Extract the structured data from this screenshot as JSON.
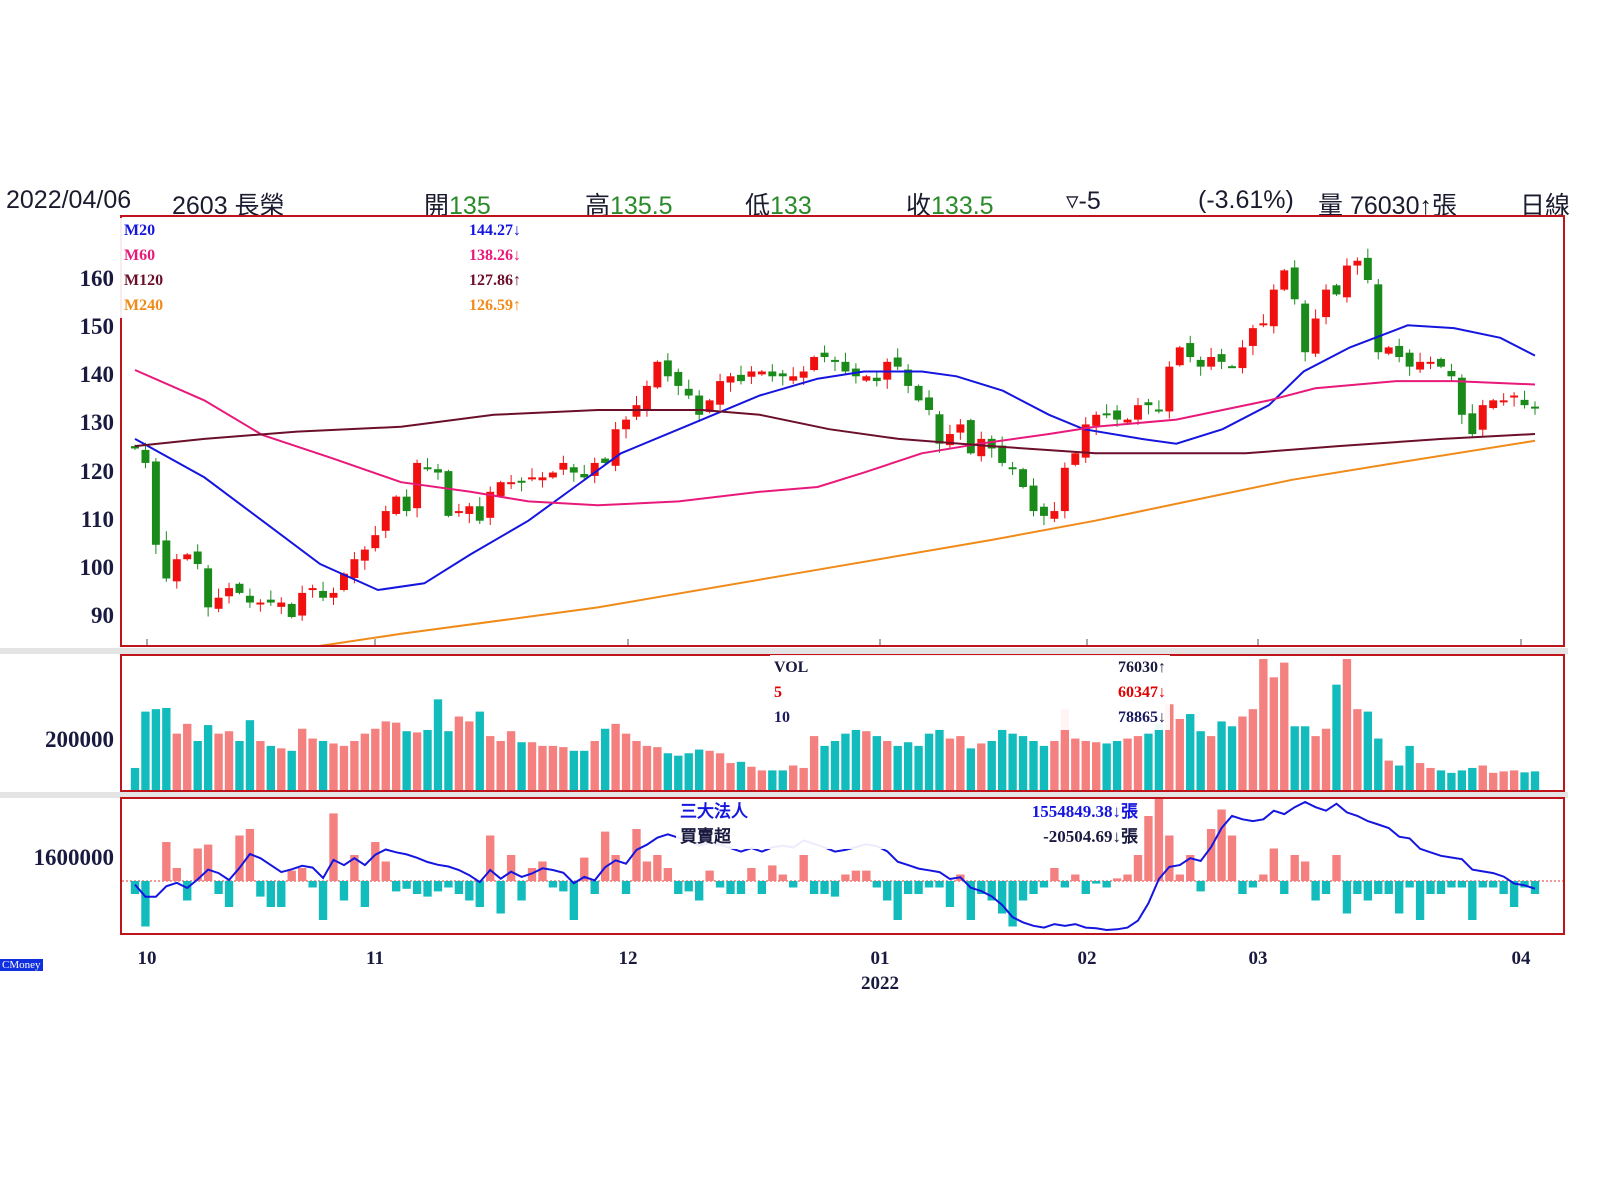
{
  "header": {
    "date": "2022/04/06",
    "stock": "2603 長榮",
    "open_label": "開",
    "open": "135",
    "high_label": "高",
    "high": "135.5",
    "low_label": "低",
    "low": "133",
    "close_label": "收",
    "close": "133.5",
    "change": "▿-5",
    "change_pct": "(-3.61%)",
    "volume_label": "量",
    "volume": "76030↑張",
    "period": "日線"
  },
  "ma_legend": [
    {
      "name": "M20",
      "value": "144.27↓",
      "color": "#1515e0"
    },
    {
      "name": "M60",
      "value": "138.26↓",
      "color": "#e8197a"
    },
    {
      "name": "M120",
      "value": "127.86↑",
      "color": "#6b0f2a"
    },
    {
      "name": "M240",
      "value": "126.59↑",
      "color": "#f08a18"
    }
  ],
  "vol_legend": [
    {
      "name": "VOL",
      "value": "76030↑",
      "color": "#1a1a40"
    },
    {
      "name": "5",
      "value": "60347↓",
      "color": "#e00000"
    },
    {
      "name": "10",
      "value": "78865↓",
      "color": "#1a1a60"
    }
  ],
  "inst_legend": [
    {
      "name": "三大法人",
      "value": "1554849.38↓張",
      "color": "#1515e0"
    },
    {
      "name": "買賣超",
      "value": "-20504.69↓張",
      "color": "#1a1a40"
    }
  ],
  "brand": "CMoney",
  "chart_data": {
    "type": "candlestick",
    "price_ticks": [
      "160",
      "150",
      "140",
      "130",
      "120",
      "110",
      "100",
      "90"
    ],
    "price_range": [
      84,
      167
    ],
    "vol_tick": "200000",
    "inst_tick": "1600000",
    "x_ticks": [
      "10",
      "11",
      "12",
      "01",
      "02",
      "03",
      "04"
    ],
    "x_year": "2022",
    "close": [
      125,
      122,
      105,
      98,
      102,
      103,
      101,
      92,
      94,
      96,
      95,
      93,
      93,
      93,
      93,
      90,
      95,
      96,
      94,
      95,
      99,
      102,
      104,
      107,
      112,
      115,
      112,
      122,
      121,
      120,
      111,
      112,
      113,
      110,
      116,
      118,
      118,
      118,
      119,
      119,
      120,
      122,
      120,
      119,
      122,
      122,
      129,
      131,
      134,
      138,
      143,
      140,
      138,
      136,
      132,
      135,
      139,
      140,
      139,
      141,
      141,
      140,
      140,
      140,
      141,
      144,
      144,
      143,
      141,
      140,
      140,
      139,
      143,
      142,
      138,
      135,
      133,
      126,
      128,
      130,
      124,
      127,
      125,
      122,
      121,
      117,
      112,
      111,
      112,
      121,
      124,
      130,
      132,
      132,
      131,
      131,
      134,
      134,
      133,
      142,
      146,
      144,
      142,
      144,
      143,
      142,
      146,
      150,
      151,
      158,
      162,
      156,
      145,
      152,
      158,
      157,
      163,
      164,
      160,
      145,
      146,
      144,
      142,
      143,
      143,
      142,
      140,
      132,
      128,
      134,
      135,
      135,
      136,
      134,
      133.5
    ],
    "volume_thousands": [
      90,
      320,
      330,
      335,
      230,
      270,
      200,
      265,
      230,
      240,
      200,
      285,
      200,
      180,
      170,
      160,
      250,
      210,
      200,
      190,
      180,
      200,
      230,
      250,
      280,
      275,
      240,
      235,
      245,
      370,
      240,
      300,
      280,
      320,
      220,
      200,
      240,
      195,
      195,
      180,
      180,
      175,
      160,
      160,
      200,
      250,
      270,
      230,
      200,
      180,
      175,
      150,
      140,
      150,
      165,
      160,
      150,
      110,
      115,
      95,
      80,
      80,
      80,
      100,
      90,
      220,
      180,
      200,
      230,
      250,
      240,
      220,
      200,
      180,
      195,
      180,
      230,
      250,
      210,
      220,
      170,
      190,
      200,
      250,
      230,
      220,
      200,
      180,
      200,
      330,
      210,
      200,
      195,
      190,
      200,
      210,
      220,
      230,
      270,
      350,
      290,
      310,
      240,
      220,
      280,
      260,
      300,
      330,
      540,
      460,
      520,
      260,
      260,
      220,
      250,
      430,
      540,
      330,
      320,
      210,
      120,
      100,
      180,
      110,
      90,
      80,
      70,
      80,
      90,
      100,
      70,
      76,
      80,
      72,
      76
    ],
    "net_buy_thousands": [
      -10,
      -35,
      0,
      30,
      10,
      -15,
      25,
      28,
      -10,
      -20,
      35,
      40,
      -12,
      -20,
      -20,
      8,
      10,
      -5,
      -30,
      52,
      -15,
      20,
      -20,
      30,
      15,
      -8,
      -6,
      -10,
      -12,
      -8,
      -5,
      -10,
      -15,
      -20,
      35,
      -25,
      20,
      -15,
      10,
      15,
      -5,
      -8,
      -30,
      18,
      -10,
      38,
      20,
      -10,
      40,
      15,
      20,
      10,
      -10,
      -8,
      -15,
      8,
      -5,
      -10,
      -10,
      10,
      -10,
      12,
      5,
      -5,
      20,
      -10,
      -10,
      -12,
      5,
      8,
      8,
      -5,
      -15,
      -30,
      -10,
      -10,
      -5,
      -5,
      -20,
      5,
      -30,
      -10,
      -15,
      -25,
      -35,
      -15,
      -10,
      -5,
      10,
      -5,
      5,
      -10,
      -2,
      -5,
      2,
      5,
      20,
      50,
      70,
      35,
      5,
      20,
      -8,
      40,
      55,
      35,
      -10,
      -5,
      5,
      25,
      -10,
      20,
      15,
      -15,
      -10,
      20,
      -25,
      -10,
      -15,
      -10,
      -10,
      -25,
      -5,
      -30,
      -10,
      -10,
      -5,
      -5,
      -30,
      -5,
      -5,
      -10,
      -20,
      -5,
      -10,
      -25,
      -15,
      -10,
      -20
    ],
    "ma": {
      "M20": [
        [
          0,
          127
        ],
        [
          6,
          119
        ],
        [
          11,
          110
        ],
        [
          16,
          101
        ],
        [
          21,
          95.6
        ],
        [
          25,
          97
        ],
        [
          29,
          103
        ],
        [
          34,
          110
        ],
        [
          38,
          117
        ],
        [
          42,
          124
        ],
        [
          48,
          130
        ],
        [
          54,
          136
        ],
        [
          59,
          139.5
        ],
        [
          63,
          141
        ],
        [
          68,
          141
        ],
        [
          71,
          140
        ],
        [
          75,
          137
        ],
        [
          79,
          132
        ],
        [
          82,
          129
        ],
        [
          87,
          127
        ],
        [
          90,
          126
        ],
        [
          94,
          129
        ],
        [
          98,
          134
        ],
        [
          101,
          141
        ],
        [
          105,
          146
        ],
        [
          110,
          150.6
        ],
        [
          114,
          150
        ],
        [
          118,
          148
        ],
        [
          121,
          144.3
        ]
      ],
      "M60": [
        [
          0,
          141.3
        ],
        [
          6,
          135
        ],
        [
          11,
          127.8
        ],
        [
          17,
          123
        ],
        [
          23,
          118
        ],
        [
          29,
          116
        ],
        [
          34,
          114
        ],
        [
          40,
          113.2
        ],
        [
          47,
          114
        ],
        [
          54,
          116
        ],
        [
          59,
          117
        ],
        [
          63,
          120
        ],
        [
          68,
          124
        ],
        [
          73,
          126
        ],
        [
          79,
          128
        ],
        [
          83,
          129.5
        ],
        [
          90,
          131
        ],
        [
          98,
          135
        ],
        [
          102,
          137.5
        ],
        [
          109,
          139
        ],
        [
          114,
          139
        ],
        [
          121,
          138.3
        ]
      ],
      "M120": [
        [
          0,
          125.5
        ],
        [
          6,
          127
        ],
        [
          14,
          128.5
        ],
        [
          23,
          129.5
        ],
        [
          31,
          132
        ],
        [
          40,
          133
        ],
        [
          49,
          133
        ],
        [
          54,
          132
        ],
        [
          60,
          129
        ],
        [
          66,
          127
        ],
        [
          74,
          125.5
        ],
        [
          83,
          124
        ],
        [
          96,
          124
        ],
        [
          104,
          125.5
        ],
        [
          113,
          127
        ],
        [
          121,
          128
        ]
      ],
      "M240": [
        [
          16,
          84
        ],
        [
          23,
          86.5
        ],
        [
          40,
          92
        ],
        [
          57,
          99
        ],
        [
          74,
          106
        ],
        [
          83,
          110
        ],
        [
          91,
          114
        ],
        [
          100,
          118.5
        ],
        [
          109,
          122
        ],
        [
          121,
          126.6
        ]
      ]
    }
  }
}
